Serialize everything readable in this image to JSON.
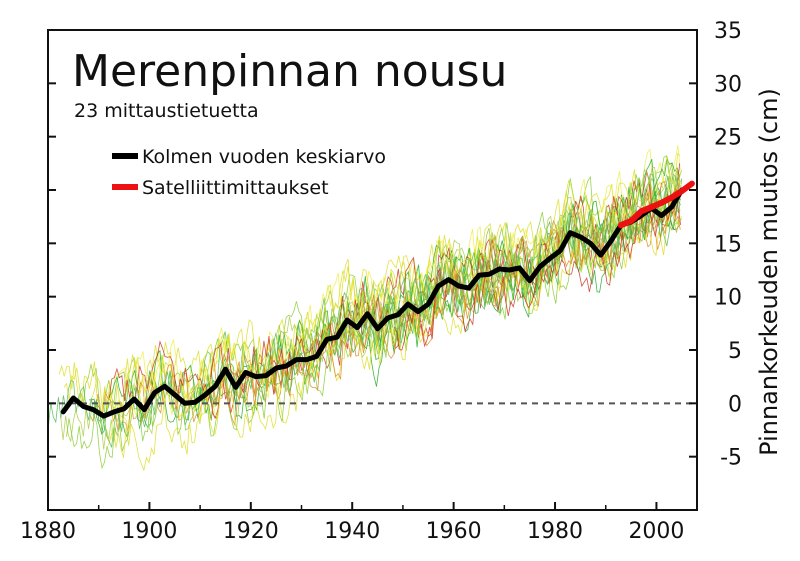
{
  "chart_data": {
    "type": "line",
    "title": "Merenpinnan nousu",
    "subtitle": "23 mittaustietuetta",
    "xlabel": "",
    "ylabel": "Pinnankorkeuden muutos (cm)",
    "xlim": [
      1880,
      2008
    ],
    "ylim": [
      -10,
      35
    ],
    "x_ticks": [
      "1880",
      "1900",
      "1920",
      "1940",
      "1960",
      "1980",
      "2000"
    ],
    "y_ticks": [
      "35",
      "30",
      "25",
      "20",
      "15",
      "10",
      "5",
      "0",
      "-5"
    ],
    "zero_line": true,
    "legend": {
      "placement": "top-left"
    },
    "series": [
      {
        "name": "Kolmen vuoden keskiarvo",
        "color": "#000000",
        "x": [
          1883,
          1885,
          1887,
          1889,
          1891,
          1893,
          1895,
          1897,
          1899,
          1901,
          1903,
          1905,
          1907,
          1909,
          1911,
          1913,
          1915,
          1917,
          1919,
          1921,
          1923,
          1925,
          1927,
          1929,
          1931,
          1933,
          1935,
          1937,
          1939,
          1941,
          1943,
          1945,
          1947,
          1949,
          1951,
          1953,
          1955,
          1957,
          1959,
          1961,
          1963,
          1965,
          1967,
          1969,
          1971,
          1973,
          1975,
          1977,
          1979,
          1981,
          1983,
          1985,
          1987,
          1989,
          1991,
          1993,
          1995,
          1997,
          1999,
          2001,
          2003,
          2005
        ],
        "y": [
          -0.8,
          0.5,
          -0.3,
          -0.6,
          -1.2,
          -0.8,
          -0.5,
          0.4,
          -0.6,
          1,
          1.6,
          0.8,
          0,
          0.1,
          0.8,
          1.6,
          3.2,
          1.5,
          2.9,
          2.5,
          2.6,
          3.3,
          3.5,
          4.1,
          4.1,
          4.4,
          6,
          6.2,
          7.8,
          7.1,
          8.4,
          7,
          8,
          8.3,
          9.3,
          8.6,
          9.3,
          11,
          11.6,
          11,
          10.8,
          12,
          12.1,
          12.6,
          12.5,
          12.7,
          11.5,
          12.8,
          13.6,
          14.3,
          16,
          15.6,
          15,
          13.9,
          15.2,
          16.7,
          17,
          17.6,
          18.3,
          17.6,
          18.4,
          20
        ]
      },
      {
        "name": "Satelliittimittaukset",
        "color": "#ee1111",
        "x": [
          1993,
          1995,
          1997,
          1999,
          2001,
          2003,
          2005,
          2007
        ],
        "y": [
          16.7,
          17.1,
          18,
          18.4,
          18.8,
          19.3,
          19.9,
          20.6
        ]
      }
    ],
    "tide_gauge_records": {
      "count": 23,
      "colors": [
        "#22aa22",
        "#88cc33",
        "#dddd22",
        "#dd8822",
        "#cc3322",
        "#55bb55",
        "#aacc44",
        "#eeee44"
      ]
    }
  }
}
